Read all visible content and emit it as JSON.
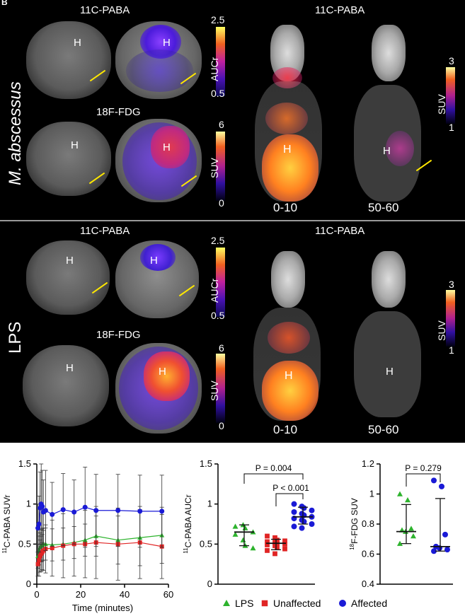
{
  "imaging": {
    "panel_letter": "B",
    "top_row_label": "M. abscessus",
    "bottom_row_label": "LPS",
    "top": {
      "paba_tracer": "11C-PABA",
      "fdg_tracer": "18F-FDG",
      "auc_bar": {
        "name": "AUCr",
        "max": "2.5",
        "min": "0.5"
      },
      "suv_bar": {
        "name": "SUV",
        "max": "6",
        "min": "0"
      },
      "mip_title": "11C-PABA",
      "mip_bar": {
        "name": "SUV",
        "max": "3",
        "min": "1"
      },
      "time_left": "0-10",
      "time_right": "50-60",
      "heart_label": "H"
    },
    "bottom": {
      "paba_tracer": "11C-PABA",
      "fdg_tracer": "18F-FDG",
      "auc_bar": {
        "name": "AUCr",
        "max": "2.5",
        "min": "0.5"
      },
      "suv_bar": {
        "name": "SUV",
        "max": "6",
        "min": "0"
      },
      "mip_title": "11C-PABA",
      "mip_bar": {
        "name": "SUV",
        "max": "3",
        "min": "1"
      },
      "time_left": "0-10",
      "time_right": "50-60",
      "heart_label": "H"
    }
  },
  "legend": {
    "items": [
      {
        "label": "LPS",
        "color": "#2db32d",
        "marker": "triangle"
      },
      {
        "label": "Unaffected",
        "color": "#e02424",
        "marker": "square"
      },
      {
        "label": "Affected",
        "color": "#1a1ad6",
        "marker": "circle"
      }
    ]
  },
  "chart_data": [
    {
      "type": "line",
      "ylabel": "11C-PABA SUVr",
      "xlabel": "Time (minutes)",
      "xlim": [
        0,
        60
      ],
      "ylim": [
        0,
        1.5
      ],
      "xticks": [
        0,
        20,
        40,
        60
      ],
      "yticks": [
        0,
        0.5,
        1,
        1.5
      ],
      "x": [
        0.5,
        1,
        1.5,
        2,
        2.5,
        3,
        4,
        7,
        12,
        17,
        22,
        27,
        37,
        47,
        57
      ],
      "series": [
        {
          "name": "LPS",
          "color": "#2db32d",
          "marker": "triangle",
          "values": [
            0.35,
            0.42,
            0.46,
            0.48,
            0.49,
            0.5,
            0.5,
            0.49,
            0.5,
            0.52,
            0.55,
            0.6,
            0.55,
            0.58,
            0.61
          ],
          "errors": [
            0.15,
            0.18,
            0.18,
            0.2,
            0.2,
            0.2,
            0.2,
            0.2,
            0.2,
            0.2,
            0.2,
            0.25,
            0.3,
            0.35,
            0.35
          ]
        },
        {
          "name": "Unaffected",
          "color": "#e02424",
          "marker": "square",
          "values": [
            0.25,
            0.3,
            0.35,
            0.38,
            0.4,
            0.42,
            0.44,
            0.45,
            0.48,
            0.5,
            0.5,
            0.52,
            0.5,
            0.52,
            0.47
          ],
          "errors": [
            0.15,
            0.2,
            0.2,
            0.22,
            0.22,
            0.25,
            0.3,
            0.35,
            0.4,
            0.4,
            0.42,
            0.45,
            0.45,
            0.45,
            0.4
          ]
        },
        {
          "name": "Affected",
          "color": "#1a1ad6",
          "marker": "circle",
          "values": [
            0.7,
            0.75,
            0.95,
            1.0,
            0.97,
            0.9,
            0.92,
            0.87,
            0.93,
            0.9,
            0.96,
            0.92,
            0.92,
            0.91,
            0.91
          ],
          "errors": [
            0.3,
            0.35,
            0.45,
            0.5,
            0.45,
            0.4,
            0.5,
            0.4,
            0.45,
            0.4,
            0.5,
            0.45,
            0.45,
            0.45,
            0.45
          ]
        }
      ]
    },
    {
      "type": "scatter",
      "ylabel": "11C-PABA AUCr",
      "ylim": [
        0,
        1.5
      ],
      "yticks": [
        0,
        0.5,
        1,
        1.5
      ],
      "groups": [
        {
          "name": "LPS",
          "color": "#2db32d",
          "marker": "triangle",
          "mean": 0.65,
          "lower": 0.48,
          "upper": 0.74,
          "points": [
            0.72,
            0.74,
            0.7,
            0.65,
            0.62,
            0.55,
            0.48,
            0.45
          ]
        },
        {
          "name": "Unaffected",
          "color": "#e02424",
          "marker": "square",
          "mean": 0.51,
          "lower": 0.43,
          "upper": 0.56,
          "points": [
            0.6,
            0.58,
            0.55,
            0.54,
            0.53,
            0.52,
            0.51,
            0.5,
            0.49,
            0.48,
            0.46,
            0.44,
            0.42,
            0.38
          ]
        },
        {
          "name": "Affected",
          "color": "#1a1ad6",
          "marker": "circle",
          "mean": 0.84,
          "lower": 0.75,
          "upper": 0.96,
          "points": [
            1.0,
            0.97,
            0.95,
            0.92,
            0.9,
            0.88,
            0.86,
            0.84,
            0.82,
            0.8,
            0.78,
            0.75,
            0.72,
            0.7
          ]
        }
      ],
      "annotations": [
        {
          "text": "P = 0.004",
          "between": [
            "LPS",
            "Affected"
          ]
        },
        {
          "text": "P < 0.001",
          "between": [
            "Unaffected",
            "Affected"
          ]
        }
      ]
    },
    {
      "type": "scatter",
      "ylabel": "18F-FDG SUV",
      "ylim": [
        0.4,
        1.2
      ],
      "yticks": [
        0.4,
        0.6,
        0.8,
        1,
        1.2
      ],
      "groups": [
        {
          "name": "LPS",
          "color": "#2db32d",
          "marker": "triangle",
          "median": 0.75,
          "lower": 0.67,
          "upper": 0.93,
          "points": [
            1.0,
            0.96,
            0.77,
            0.76,
            0.75,
            0.72,
            0.67
          ]
        },
        {
          "name": "Affected",
          "color": "#1a1ad6",
          "marker": "circle",
          "median": 0.65,
          "lower": 0.62,
          "upper": 0.97,
          "points": [
            1.09,
            1.05,
            0.73,
            0.65,
            0.64,
            0.63,
            0.62
          ]
        }
      ],
      "annotations": [
        {
          "text": "P = 0.279",
          "between": [
            "LPS",
            "Affected"
          ]
        }
      ]
    }
  ]
}
